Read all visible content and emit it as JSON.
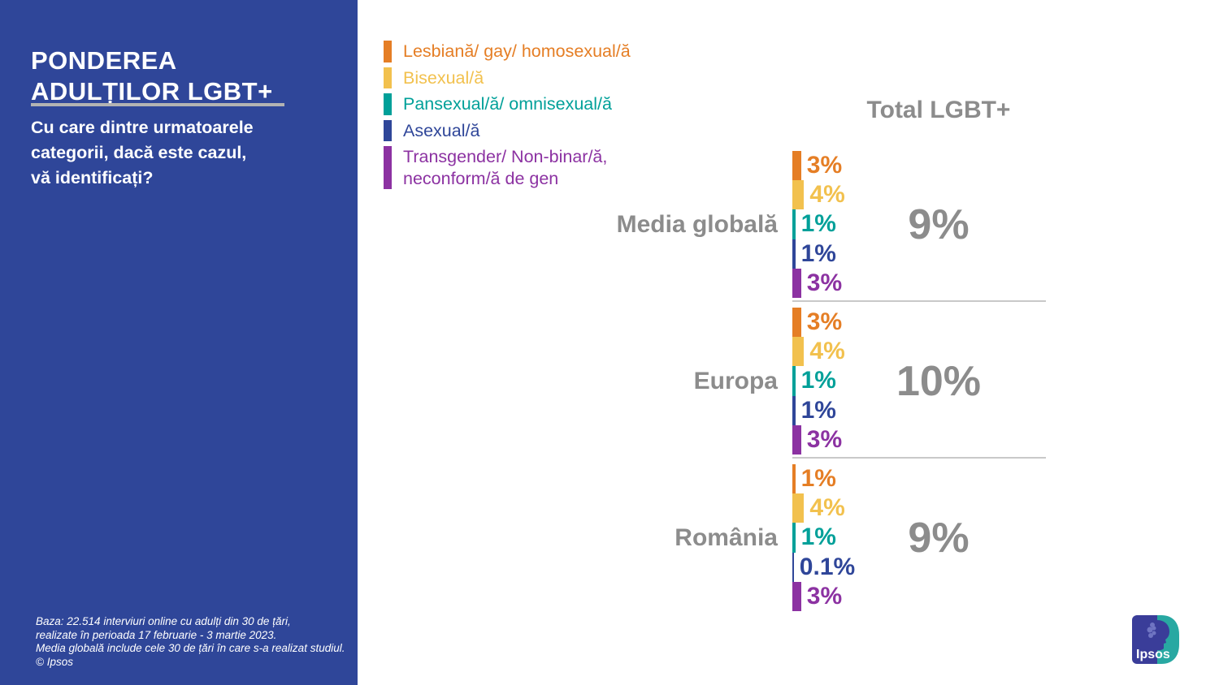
{
  "sidebar": {
    "title_line1": "PONDEREA",
    "title_line2": "ADULȚILOR LGBT+",
    "subtitle_line1": "Cu care dintre urmatoarele",
    "subtitle_line2": "categorii, dacă este cazul,",
    "subtitle_line3": "vă identificați?",
    "footnote_line1": "Baza: 22.514 interviuri online cu adulți din 30 de țări,",
    "footnote_line2": "realizate în perioada 17 februarie - 3 martie 2023.",
    "footnote_line3": "Media globală include cele 30 de țări în care s-a realizat studiul.",
    "footnote_line4": "© Ipsos"
  },
  "logo": {
    "text": "Ipsos",
    "indigo": "#3A3D99",
    "teal": "#28A8A2"
  },
  "colors": {
    "sidebar_blue": "#2F4699",
    "label_gray": "#8C8C8C",
    "divider_gray": "#C9C9C9",
    "title_rule_gray": "#B3B3B3"
  },
  "chart_data": {
    "type": "bar",
    "title": "Ponderea adulților LGBT+",
    "question": "Cu care dintre urmatoarele categorii, dacă este cazul, vă identificați?",
    "total_header": "Total LGBT+",
    "unit": "%",
    "grid": false,
    "legend_position": "top-left",
    "categories": [
      "Lesbiană/ gay/ homosexual/ă",
      "Bisexual/ă",
      "Pansexual/ă/ omnisexual/ă",
      "Asexual/ă",
      "Transgender/ Non-binar/ă,\nneconform/ă de gen"
    ],
    "category_colors": [
      "#E57E25",
      "#F2C14E",
      "#00A099",
      "#2F4699",
      "#8C32A2"
    ],
    "series": [
      {
        "name": "Media globală",
        "values": [
          3,
          4,
          1,
          1,
          3
        ],
        "value_labels": [
          "3%",
          "4%",
          "1%",
          "1%",
          "3%"
        ],
        "total": 9,
        "total_label": "9%"
      },
      {
        "name": "Europa",
        "values": [
          3,
          4,
          1,
          1,
          3
        ],
        "value_labels": [
          "3%",
          "4%",
          "1%",
          "1%",
          "3%"
        ],
        "total": 10,
        "total_label": "10%"
      },
      {
        "name": "România",
        "values": [
          1,
          4,
          1,
          0.1,
          3
        ],
        "value_labels": [
          "1%",
          "4%",
          "1%",
          "0.1%",
          "3%"
        ],
        "total": 9,
        "total_label": "9%"
      }
    ]
  }
}
